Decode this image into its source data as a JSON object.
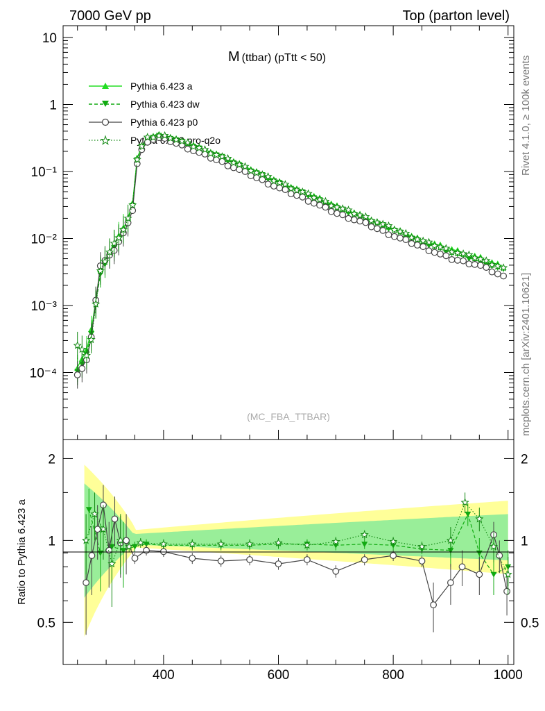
{
  "header": {
    "left": "7000 GeV pp",
    "right": "Top (parton level)"
  },
  "side_labels": {
    "rivet": "Rivet 4.1.0, ≥ 100k events",
    "mcplots": "mcplots.cern.ch [arXiv:2401.10621]"
  },
  "colors": {
    "pythia_a": "#22dd22",
    "pythia_dw": "#11aa11",
    "pythia_p0": "#444444",
    "pythia_pro_q2o": "#118811",
    "band_yellow": "#ffff99",
    "band_green": "#99ee99"
  },
  "chart_data": [
    {
      "type": "line",
      "title": "M (ttbar) (pTtt < 50)",
      "title_main": "M",
      "title_sub": "(ttbar) (pTtt < 50)",
      "watermark": "(MC_FBA_TTBAR)",
      "xlim": [
        225,
        1010
      ],
      "ylim": [
        1e-05,
        15
      ],
      "yscale": "log",
      "y_tick_labels": [
        "10",
        "1",
        "10⁻¹",
        "10⁻²",
        "10⁻³",
        "10⁻⁴"
      ],
      "legend_position": "top-left",
      "series": [
        {
          "name": "Pythia 6.423 a",
          "marker": "triangle-up",
          "style": "solid",
          "x": [
            250,
            270,
            290,
            310,
            330,
            345,
            355,
            370,
            390,
            410,
            450,
            500,
            550,
            600,
            650,
            700,
            750,
            800,
            850,
            900,
            950,
            1000
          ],
          "values": [
            0.00012,
            0.00025,
            0.0035,
            0.0075,
            0.014,
            0.028,
            0.19,
            0.31,
            0.35,
            0.33,
            0.25,
            0.17,
            0.11,
            0.07,
            0.047,
            0.031,
            0.021,
            0.014,
            0.0095,
            0.007,
            0.0052,
            0.0036
          ]
        },
        {
          "name": "Pythia 6.423 dw",
          "marker": "triangle-down",
          "style": "dashed",
          "x": [
            250,
            270,
            290,
            310,
            330,
            345,
            355,
            370,
            390,
            410,
            450,
            500,
            550,
            600,
            650,
            700,
            750,
            800,
            850,
            900,
            950,
            1000
          ],
          "values": [
            0.0001,
            0.00022,
            0.003,
            0.0065,
            0.013,
            0.026,
            0.18,
            0.3,
            0.34,
            0.32,
            0.24,
            0.165,
            0.105,
            0.068,
            0.045,
            0.029,
            0.02,
            0.0135,
            0.0088,
            0.0062,
            0.0046,
            0.0032
          ]
        },
        {
          "name": "Pythia 6.423 p0",
          "marker": "circle-open",
          "style": "solid",
          "x": [
            250,
            270,
            290,
            310,
            330,
            345,
            355,
            370,
            390,
            410,
            450,
            500,
            550,
            600,
            650,
            700,
            750,
            800,
            850,
            900,
            950,
            1000
          ],
          "values": [
            9e-05,
            0.00018,
            0.004,
            0.006,
            0.012,
            0.022,
            0.16,
            0.28,
            0.32,
            0.29,
            0.21,
            0.14,
            0.09,
            0.057,
            0.038,
            0.024,
            0.017,
            0.011,
            0.0075,
            0.005,
            0.004,
            0.0025
          ]
        },
        {
          "name": "Pythia 6.423 pro-q2o",
          "marker": "star-open",
          "style": "dotted",
          "x": [
            250,
            270,
            290,
            310,
            330,
            345,
            355,
            370,
            390,
            410,
            450,
            500,
            550,
            600,
            650,
            700,
            750,
            800,
            850,
            900,
            950,
            1000
          ],
          "values": [
            0.00025,
            0.00017,
            0.0034,
            0.0072,
            0.0135,
            0.027,
            0.185,
            0.31,
            0.345,
            0.33,
            0.245,
            0.168,
            0.108,
            0.069,
            0.046,
            0.03,
            0.021,
            0.014,
            0.0092,
            0.0066,
            0.005,
            0.0034
          ]
        }
      ]
    },
    {
      "type": "line",
      "ylabel": "Ratio to Pythia 6.423 a",
      "xlim": [
        225,
        1010
      ],
      "ylim": [
        0.35,
        2.35
      ],
      "x_tick_labels": [
        "400",
        "600",
        "800",
        "1000"
      ],
      "y_tick_labels": [
        "2",
        "1",
        "0.5"
      ],
      "series": [
        {
          "name": "Pythia 6.423 dw",
          "x": [
            270,
            290,
            310,
            330,
            350,
            370,
            400,
            450,
            500,
            550,
            600,
            650,
            700,
            750,
            800,
            850,
            900,
            930,
            950,
            975,
            1000
          ],
          "values": [
            1.3,
            0.9,
            0.95,
            0.92,
            0.95,
            0.97,
            0.96,
            0.96,
            0.96,
            0.96,
            0.97,
            0.97,
            0.96,
            0.97,
            0.96,
            0.93,
            0.92,
            1.25,
            0.9,
            0.75,
            0.8
          ]
        },
        {
          "name": "Pythia 6.423 p0",
          "x": [
            265,
            275,
            285,
            295,
            305,
            315,
            325,
            335,
            350,
            370,
            400,
            450,
            500,
            550,
            600,
            650,
            700,
            750,
            800,
            850,
            870,
            900,
            920,
            950,
            975,
            985,
            998
          ],
          "values": [
            0.7,
            0.88,
            1.1,
            1.35,
            0.92,
            1.2,
            0.98,
            1.0,
            0.86,
            0.92,
            0.91,
            0.86,
            0.84,
            0.85,
            0.82,
            0.85,
            0.77,
            0.85,
            0.88,
            0.84,
            0.58,
            0.7,
            0.8,
            0.75,
            1.05,
            0.88,
            0.65
          ]
        },
        {
          "name": "Pythia 6.423 pro-q2o",
          "x": [
            265,
            280,
            295,
            310,
            325,
            340,
            360,
            400,
            450,
            500,
            550,
            600,
            650,
            700,
            750,
            800,
            850,
            900,
            925,
            950,
            975,
            1000
          ],
          "values": [
            1.0,
            1.25,
            1.1,
            0.82,
            1.0,
            0.95,
            0.98,
            0.97,
            0.97,
            0.97,
            0.97,
            0.98,
            0.96,
            0.99,
            1.05,
            0.99,
            0.95,
            1.0,
            1.38,
            1.2,
            0.95,
            0.75
          ]
        }
      ]
    }
  ]
}
